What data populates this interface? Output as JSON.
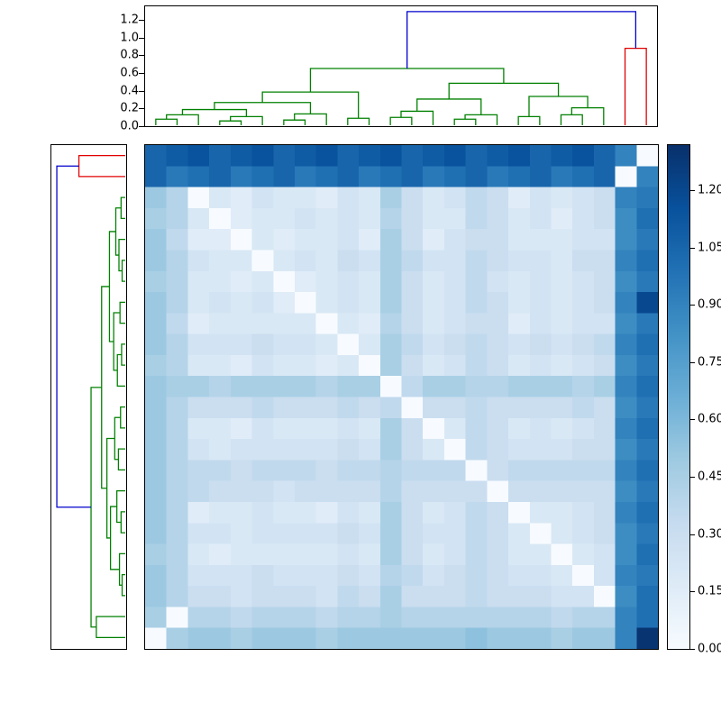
{
  "chart_data": {
    "type": "heatmap",
    "title": "",
    "xlabel": "",
    "ylabel": "",
    "n": 24,
    "vmin": 0,
    "vmax": 1.32,
    "grid": false,
    "legend": "none",
    "colormap": "Blues",
    "colormap_stops": [
      "#f7fbff",
      "#deebf7",
      "#c6dbef",
      "#9ecae1",
      "#6baed6",
      "#4292c6",
      "#2171b5",
      "#08519c",
      "#08306b"
    ],
    "link_colors": {
      "b": "#0000cc",
      "g": "#008000",
      "r": "#e00000"
    },
    "matrix": [
      [
        1.05,
        1.1,
        1.15,
        1.05,
        1.1,
        1.15,
        1.05,
        1.1,
        1.15,
        1.05,
        1.1,
        1.15,
        1.05,
        1.1,
        1.15,
        1.05,
        1.1,
        1.15,
        1.05,
        1.1,
        1.15,
        1.05,
        0.9,
        0.0
      ],
      [
        1.05,
        0.95,
        1.0,
        1.05,
        0.95,
        1.0,
        1.05,
        0.95,
        1.0,
        1.05,
        0.95,
        1.0,
        1.05,
        0.95,
        1.0,
        1.05,
        0.95,
        1.0,
        1.05,
        0.95,
        1.0,
        1.05,
        0.0,
        0.9
      ],
      [
        0.5,
        0.4,
        0.0,
        0.2,
        0.15,
        0.25,
        0.2,
        0.2,
        0.15,
        0.25,
        0.2,
        0.45,
        0.3,
        0.2,
        0.25,
        0.35,
        0.3,
        0.15,
        0.25,
        0.2,
        0.25,
        0.3,
        0.9,
        0.95
      ],
      [
        0.45,
        0.4,
        0.2,
        0.0,
        0.15,
        0.2,
        0.2,
        0.25,
        0.2,
        0.25,
        0.2,
        0.4,
        0.3,
        0.2,
        0.2,
        0.35,
        0.3,
        0.2,
        0.25,
        0.15,
        0.25,
        0.3,
        0.85,
        1.0
      ],
      [
        0.5,
        0.35,
        0.15,
        0.15,
        0.0,
        0.2,
        0.15,
        0.2,
        0.2,
        0.25,
        0.15,
        0.45,
        0.3,
        0.15,
        0.25,
        0.3,
        0.3,
        0.2,
        0.2,
        0.2,
        0.25,
        0.25,
        0.85,
        0.95
      ],
      [
        0.5,
        0.4,
        0.25,
        0.2,
        0.2,
        0.0,
        0.2,
        0.25,
        0.2,
        0.3,
        0.25,
        0.45,
        0.35,
        0.25,
        0.25,
        0.35,
        0.3,
        0.25,
        0.25,
        0.2,
        0.3,
        0.3,
        0.9,
        1.0
      ],
      [
        0.45,
        0.4,
        0.2,
        0.2,
        0.15,
        0.2,
        0.0,
        0.15,
        0.2,
        0.25,
        0.2,
        0.45,
        0.3,
        0.2,
        0.25,
        0.35,
        0.25,
        0.2,
        0.25,
        0.2,
        0.25,
        0.3,
        0.85,
        0.95
      ],
      [
        0.5,
        0.4,
        0.2,
        0.25,
        0.2,
        0.25,
        0.15,
        0.0,
        0.2,
        0.25,
        0.2,
        0.45,
        0.3,
        0.2,
        0.25,
        0.35,
        0.3,
        0.2,
        0.25,
        0.2,
        0.25,
        0.3,
        0.9,
        1.2
      ],
      [
        0.5,
        0.35,
        0.15,
        0.2,
        0.2,
        0.2,
        0.2,
        0.2,
        0.0,
        0.2,
        0.15,
        0.4,
        0.3,
        0.2,
        0.25,
        0.3,
        0.3,
        0.15,
        0.25,
        0.2,
        0.25,
        0.25,
        0.85,
        0.95
      ],
      [
        0.5,
        0.4,
        0.25,
        0.25,
        0.25,
        0.3,
        0.25,
        0.25,
        0.2,
        0.0,
        0.2,
        0.45,
        0.35,
        0.25,
        0.3,
        0.35,
        0.3,
        0.25,
        0.3,
        0.25,
        0.3,
        0.35,
        0.9,
        1.0
      ],
      [
        0.45,
        0.4,
        0.2,
        0.2,
        0.15,
        0.25,
        0.2,
        0.2,
        0.15,
        0.2,
        0.0,
        0.45,
        0.3,
        0.2,
        0.25,
        0.35,
        0.3,
        0.2,
        0.25,
        0.2,
        0.25,
        0.3,
        0.85,
        0.95
      ],
      [
        0.5,
        0.45,
        0.45,
        0.4,
        0.45,
        0.45,
        0.45,
        0.45,
        0.4,
        0.45,
        0.45,
        0.0,
        0.35,
        0.45,
        0.45,
        0.4,
        0.4,
        0.45,
        0.45,
        0.45,
        0.4,
        0.45,
        0.9,
        1.0
      ],
      [
        0.5,
        0.4,
        0.3,
        0.3,
        0.3,
        0.35,
        0.3,
        0.3,
        0.3,
        0.35,
        0.3,
        0.35,
        0.0,
        0.3,
        0.3,
        0.35,
        0.3,
        0.3,
        0.3,
        0.3,
        0.35,
        0.3,
        0.85,
        0.95
      ],
      [
        0.5,
        0.4,
        0.2,
        0.2,
        0.15,
        0.25,
        0.2,
        0.2,
        0.2,
        0.25,
        0.2,
        0.45,
        0.3,
        0.0,
        0.2,
        0.35,
        0.3,
        0.2,
        0.25,
        0.2,
        0.25,
        0.3,
        0.9,
        1.0
      ],
      [
        0.5,
        0.4,
        0.25,
        0.2,
        0.25,
        0.25,
        0.25,
        0.25,
        0.25,
        0.3,
        0.25,
        0.45,
        0.3,
        0.2,
        0.0,
        0.35,
        0.3,
        0.25,
        0.25,
        0.25,
        0.3,
        0.3,
        0.85,
        0.95
      ],
      [
        0.5,
        0.4,
        0.35,
        0.35,
        0.3,
        0.35,
        0.35,
        0.35,
        0.3,
        0.35,
        0.35,
        0.4,
        0.35,
        0.35,
        0.35,
        0.0,
        0.3,
        0.35,
        0.35,
        0.35,
        0.35,
        0.35,
        0.9,
        1.0
      ],
      [
        0.5,
        0.4,
        0.35,
        0.3,
        0.3,
        0.3,
        0.25,
        0.3,
        0.3,
        0.3,
        0.3,
        0.4,
        0.3,
        0.3,
        0.3,
        0.3,
        0.0,
        0.3,
        0.3,
        0.3,
        0.3,
        0.3,
        0.85,
        0.95
      ],
      [
        0.5,
        0.4,
        0.15,
        0.2,
        0.2,
        0.25,
        0.2,
        0.2,
        0.15,
        0.25,
        0.2,
        0.45,
        0.3,
        0.2,
        0.25,
        0.35,
        0.3,
        0.0,
        0.2,
        0.2,
        0.25,
        0.3,
        0.9,
        1.0
      ],
      [
        0.5,
        0.4,
        0.25,
        0.25,
        0.2,
        0.25,
        0.25,
        0.25,
        0.25,
        0.3,
        0.25,
        0.45,
        0.3,
        0.25,
        0.25,
        0.35,
        0.3,
        0.2,
        0.0,
        0.2,
        0.25,
        0.3,
        0.85,
        0.95
      ],
      [
        0.45,
        0.4,
        0.2,
        0.15,
        0.2,
        0.2,
        0.2,
        0.2,
        0.2,
        0.25,
        0.2,
        0.45,
        0.3,
        0.2,
        0.25,
        0.35,
        0.3,
        0.2,
        0.2,
        0.0,
        0.2,
        0.25,
        0.85,
        1.0
      ],
      [
        0.5,
        0.4,
        0.25,
        0.25,
        0.25,
        0.3,
        0.25,
        0.25,
        0.25,
        0.3,
        0.25,
        0.4,
        0.35,
        0.25,
        0.3,
        0.35,
        0.3,
        0.25,
        0.25,
        0.2,
        0.0,
        0.25,
        0.9,
        0.95
      ],
      [
        0.5,
        0.4,
        0.3,
        0.3,
        0.25,
        0.3,
        0.3,
        0.3,
        0.25,
        0.35,
        0.3,
        0.45,
        0.3,
        0.3,
        0.3,
        0.35,
        0.3,
        0.3,
        0.3,
        0.25,
        0.25,
        0.0,
        0.85,
        1.0
      ],
      [
        0.45,
        0.0,
        0.4,
        0.4,
        0.35,
        0.4,
        0.4,
        0.4,
        0.35,
        0.4,
        0.4,
        0.45,
        0.4,
        0.4,
        0.4,
        0.4,
        0.4,
        0.4,
        0.4,
        0.35,
        0.4,
        0.4,
        0.9,
        1.0
      ],
      [
        0.0,
        0.45,
        0.5,
        0.5,
        0.45,
        0.5,
        0.5,
        0.5,
        0.45,
        0.5,
        0.5,
        0.5,
        0.5,
        0.5,
        0.5,
        0.55,
        0.5,
        0.5,
        0.5,
        0.45,
        0.5,
        0.5,
        0.9,
        1.3
      ]
    ],
    "top_dendrogram": {
      "orientation": "top",
      "scale_max": 1.32,
      "tick_labels": [
        "1.2",
        "1.0",
        "0.8",
        "0.6",
        "0.4",
        "0.2",
        "0.0"
      ],
      "tick_values": [
        1.2,
        1.0,
        0.8,
        0.6,
        0.4,
        0.2,
        0.0
      ],
      "tree": [
        1.3,
        "b",
        [
          0.65,
          "g",
          [
            0.38,
            "g",
            [
              0.26,
              "g",
              [
                0.18,
                "g",
                [
                  0.12,
                  "g",
                  [
                    0.07,
                    "g",
                    0,
                    0
                  ],
                  0
                ],
                [
                  0.1,
                  "g",
                  [
                    0.05,
                    "g",
                    0,
                    0
                  ],
                  0
                ]
              ],
              [
                0.13,
                "g",
                [
                  0.06,
                  "g",
                  0,
                  0
                ],
                0
              ]
            ],
            [
              0.08,
              "g",
              0,
              0
            ]
          ],
          [
            0.48,
            "g",
            [
              0.3,
              "g",
              [
                0.16,
                "g",
                [
                  0.09,
                  "g",
                  0,
                  0
                ],
                0
              ],
              [
                0.12,
                "g",
                [
                  0.07,
                  "g",
                  0,
                  0
                ],
                0
              ]
            ],
            [
              0.33,
              "g",
              [
                0.1,
                "g",
                0,
                0
              ],
              [
                0.2,
                "g",
                [
                  0.12,
                  "g",
                  0,
                  0
                ],
                0
              ]
            ]
          ]
        ],
        [
          0.88,
          "r",
          0,
          0
        ]
      ]
    },
    "left_dendrogram": {
      "orientation": "left",
      "scale_max": 1.32,
      "tick_labels": [],
      "tick_values": [],
      "tree": [
        1.3,
        "b",
        [
          0.88,
          "r",
          0,
          0
        ],
        [
          0.65,
          "g",
          [
            0.45,
            "g",
            [
              0.3,
              "g",
              [
                0.18,
                "g",
                [
                  0.08,
                  "g",
                  0,
                  0
                ],
                [
                  0.12,
                  "g",
                  0,
                  [
                    0.06,
                    "g",
                    0,
                    0
                  ]
                ]
              ],
              [
                0.22,
                "g",
                [
                  0.1,
                  "g",
                  0,
                  0
                ],
                [
                  0.15,
                  "g",
                  [
                    0.07,
                    "g",
                    0,
                    0
                  ],
                  0
                ]
              ]
            ],
            [
              0.35,
              "g",
              [
                0.2,
                "g",
                [
                  0.09,
                  "g",
                  0,
                  0
                ],
                [
                  0.13,
                  "g",
                  0,
                  0
                ]
              ],
              [
                0.28,
                "g",
                [
                  0.16,
                  "g",
                  0,
                  [
                    0.08,
                    "g",
                    0,
                    0
                  ]
                ],
                [
                  0.11,
                  "g",
                  0,
                  [
                    0.06,
                    "g",
                    0,
                    0
                  ]
                ]
              ]
            ]
          ],
          [
            0.55,
            "g",
            0,
            0
          ]
        ]
      ]
    },
    "colorbar": {
      "tick_labels": [
        "1.20",
        "1.05",
        "0.90",
        "0.75",
        "0.60",
        "0.45",
        "0.30",
        "0.15",
        "0.00"
      ],
      "tick_values": [
        1.2,
        1.05,
        0.9,
        0.75,
        0.6,
        0.45,
        0.3,
        0.15,
        0.0
      ]
    }
  }
}
